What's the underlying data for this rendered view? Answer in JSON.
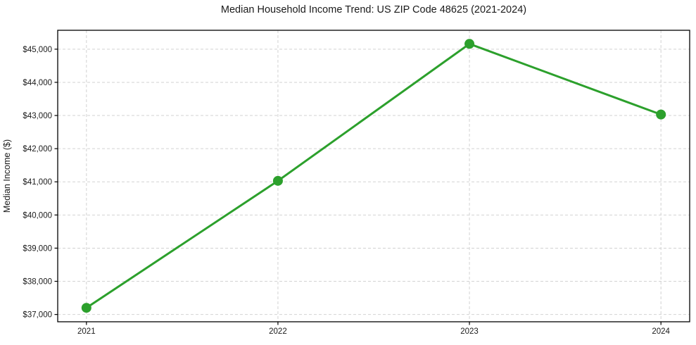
{
  "chart_data": {
    "type": "line",
    "title": "Median Household Income Trend: US ZIP Code 48625 (2021-2024)",
    "xlabel": "",
    "ylabel": "Median Income ($)",
    "x": [
      2021,
      2022,
      2023,
      2024
    ],
    "xtick_labels": [
      "2021",
      "2022",
      "2023",
      "2024"
    ],
    "series": [
      {
        "name": "Median Income",
        "values": [
          37200,
          41030,
          45160,
          43030
        ]
      }
    ],
    "yticks": [
      37000,
      38000,
      39000,
      40000,
      41000,
      42000,
      43000,
      44000,
      45000
    ],
    "ytick_labels": [
      "$37,000",
      "$38,000",
      "$39,000",
      "$40,000",
      "$41,000",
      "$42,000",
      "$43,000",
      "$44,000",
      "$45,000"
    ],
    "xlim": [
      2020.85,
      2024.15
    ],
    "ylim": [
      36780,
      45570
    ],
    "grid": true,
    "grid_style": "dashed",
    "legend": null,
    "colors": {
      "line": "#2ca02c",
      "marker": "#2ca02c",
      "grid": "#d2d2d2",
      "spine": "#000000",
      "text": "#1a1a1a",
      "background": "#ffffff"
    }
  }
}
